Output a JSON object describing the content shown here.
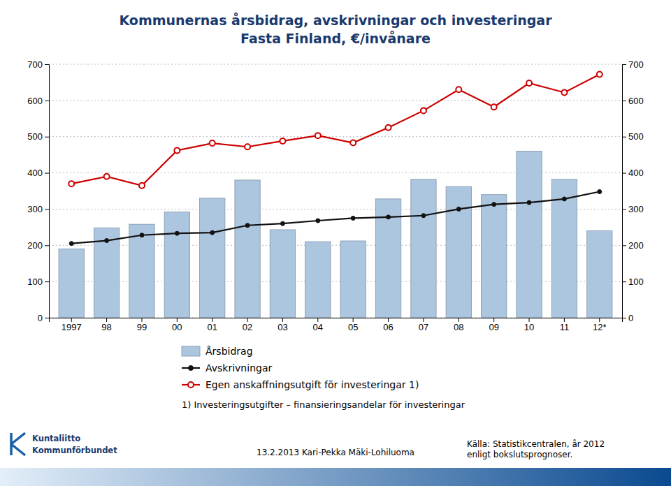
{
  "chart_data": {
    "type": "bar",
    "title": "Kommunernas årsbidrag, avskrivningar och investeringar",
    "subtitle": "Fasta Finland, €/invånare",
    "categories": [
      "1997",
      "98",
      "99",
      "00",
      "01",
      "02",
      "03",
      "04",
      "05",
      "06",
      "07",
      "08",
      "09",
      "10",
      "11",
      "12*"
    ],
    "series": [
      {
        "name": "Årsbidrag",
        "type": "bar",
        "color": "#adc6e0",
        "values": [
          190,
          248,
          258,
          292,
          330,
          380,
          243,
          210,
          212,
          328,
          382,
          362,
          340,
          460,
          382,
          240
        ]
      },
      {
        "name": "Avskrivningar",
        "type": "line",
        "color": "#111111",
        "marker": "circle",
        "values": [
          205,
          213,
          228,
          233,
          235,
          255,
          260,
          268,
          275,
          278,
          282,
          300,
          313,
          318,
          328,
          348
        ]
      },
      {
        "name": "Egen anskaffningsutgift för investeringar 1)",
        "type": "line",
        "color": "#cc0000",
        "marker": "circle-open",
        "axis": "y2",
        "values": [
          370,
          390,
          365,
          462,
          482,
          472,
          488,
          503,
          483,
          525,
          572,
          630,
          582,
          648,
          622,
          672
        ]
      }
    ],
    "ylim": [
      0,
      700
    ],
    "yticks": [
      0,
      100,
      200,
      300,
      400,
      500,
      600,
      700
    ],
    "y2lim": [
      0,
      700
    ],
    "y2ticks": [
      0,
      100,
      200,
      300,
      400,
      500,
      600,
      700
    ],
    "grid": true,
    "legend": "bottom",
    "annotations": [
      "1) Investeringsutgifter – finansieringsandelar för investeringar",
      "13.2.2013 Kari-Pekka Mäki-Lohiluoma",
      "Källa: Statistikcentralen, år 2012\nenligt bokslutsprognoser.",
      "Kuntaliitto",
      "Kommunförbundet"
    ]
  }
}
